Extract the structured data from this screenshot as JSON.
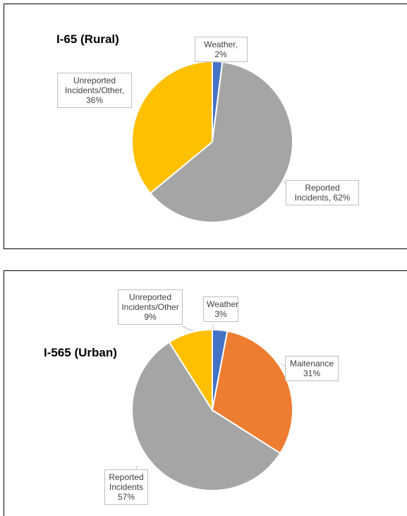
{
  "chart_data": [
    {
      "type": "pie",
      "title": "I-65 (Rural)",
      "values": [
        2,
        62,
        36
      ],
      "value_labels": [
        "Weather, 2%",
        "Reported Incidents, 62%",
        "Unreported Incidents/Other, 36%"
      ],
      "colors": [
        "#4472c4",
        "#a5a5a5",
        "#ffc000"
      ]
    },
    {
      "type": "pie",
      "title": "I-565 (Urban)",
      "values": [
        3,
        31,
        57,
        9
      ],
      "value_labels": [
        "Weather 3%",
        "Maitenance 31%",
        "Reported Incidents 57%",
        "Unreported Incidents/Other 9%"
      ],
      "colors": [
        "#4472c4",
        "#ed7d31",
        "#a5a5a5",
        "#ffc000"
      ]
    }
  ]
}
